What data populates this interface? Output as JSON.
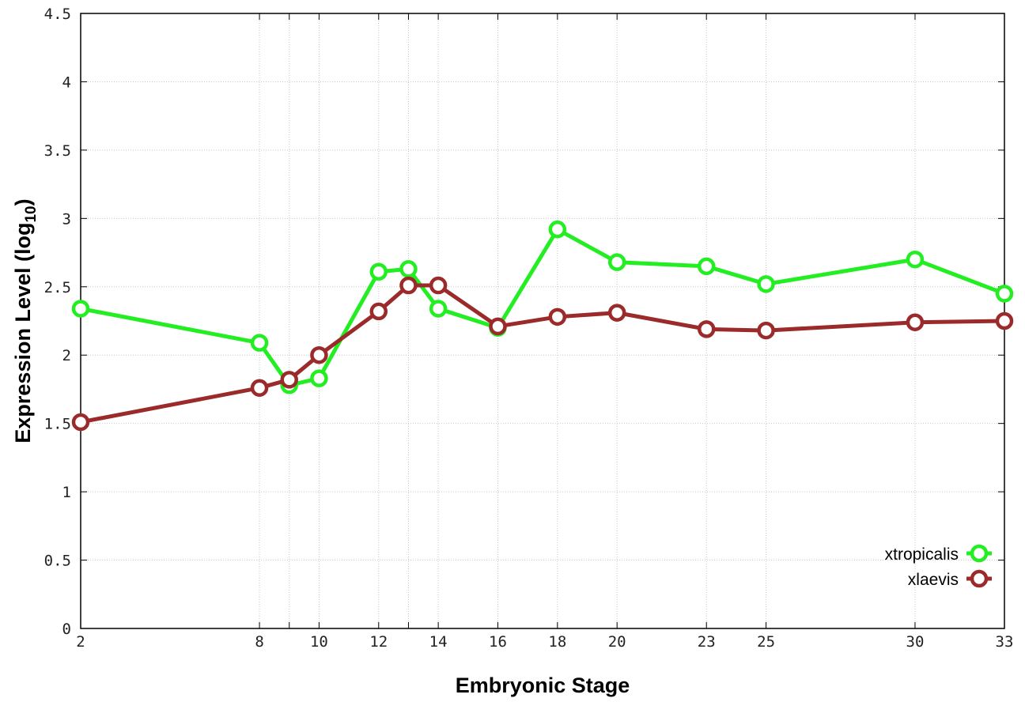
{
  "chart_data": {
    "type": "line",
    "xlabel": "Embryonic Stage",
    "ylabel_main": "Expression Level (log",
    "ylabel_sub": "10",
    "ylabel_close": ")",
    "x_ticks": [
      "2",
      "8",
      "9",
      "10",
      "12",
      "13",
      "14",
      "16",
      "18",
      "20",
      "23",
      "25",
      "30",
      "33"
    ],
    "x_tick_labels": [
      "2",
      "8",
      "",
      "10",
      "12",
      "",
      "14",
      "16",
      "18",
      "20",
      "23",
      "25",
      "30",
      "33"
    ],
    "y_ticks": [
      "0",
      "0.5",
      "1",
      "1.5",
      "2",
      "2.5",
      "3",
      "3.5",
      "4",
      "4.5"
    ],
    "ylim": [
      0,
      4.5
    ],
    "grid": true,
    "legend_position": "bottom-right",
    "series": [
      {
        "name": "xtropicalis",
        "color": "#22ee22",
        "values": [
          2.34,
          2.09,
          1.78,
          1.83,
          2.61,
          2.63,
          2.34,
          2.2,
          2.92,
          2.68,
          2.65,
          2.52,
          2.7,
          2.45
        ]
      },
      {
        "name": "xlaevis",
        "color": "#9b2a2a",
        "values": [
          1.51,
          1.76,
          1.82,
          2.0,
          2.32,
          2.51,
          2.51,
          2.21,
          2.28,
          2.31,
          2.19,
          2.18,
          2.24,
          2.25
        ]
      }
    ]
  }
}
